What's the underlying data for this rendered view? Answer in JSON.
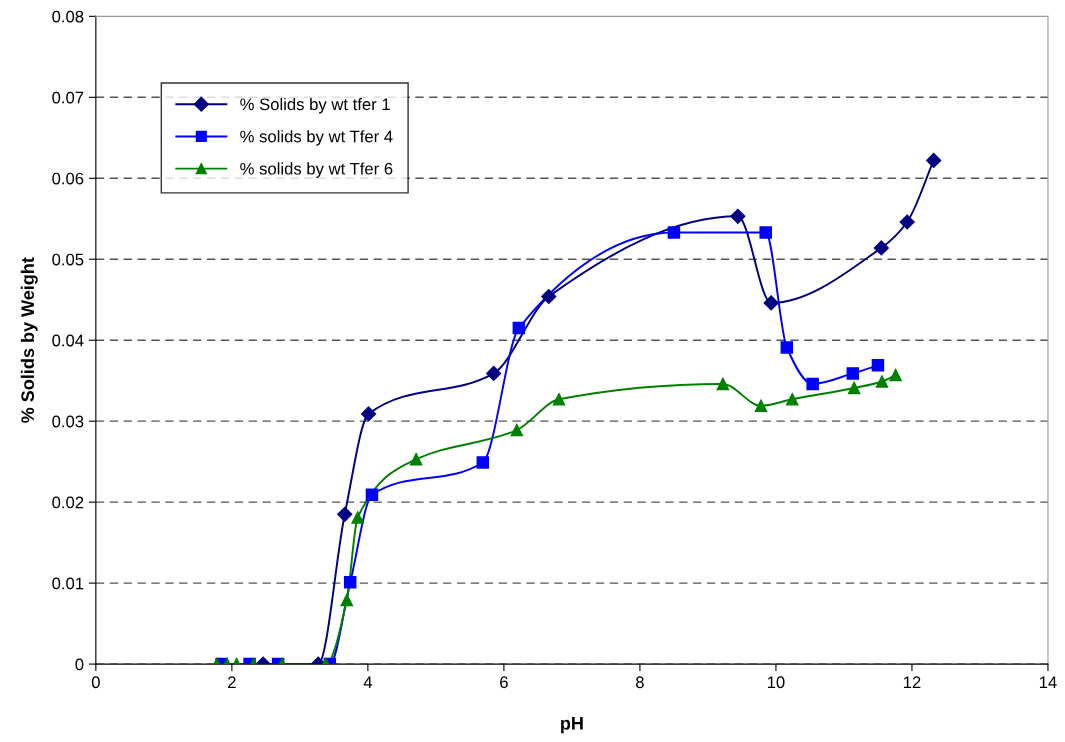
{
  "chart_data": {
    "type": "line",
    "xlabel": "pH",
    "ylabel": "% Solids by Weight",
    "xlim": [
      0,
      14
    ],
    "xticks": [
      0,
      2,
      4,
      6,
      8,
      10,
      12,
      14
    ],
    "ylim": [
      0,
      0.08
    ],
    "yticks": [
      0,
      0.01,
      0.02,
      0.03,
      0.04,
      0.05,
      0.06,
      0.07,
      0.08
    ],
    "grid": "y",
    "legend": "top left",
    "series": [
      {
        "name": "% Solids by wt tfer 1",
        "color": "#000080",
        "marker": "diamond",
        "x": [
          2.46,
          3.27,
          3.66,
          4.01,
          5.85,
          6.66,
          9.44,
          9.93,
          11.55,
          11.93,
          12.32
        ],
        "values": [
          0,
          0,
          0.0185,
          0.0309,
          0.0359,
          0.0454,
          0.0553,
          0.0446,
          0.0514,
          0.0546,
          0.0622
        ]
      },
      {
        "name": "% solids by wt Tfer 4",
        "color": "#0000ff",
        "marker": "square",
        "x": [
          1.85,
          2.26,
          2.68,
          3.44,
          3.74,
          4.06,
          5.69,
          6.22,
          8.5,
          9.85,
          10.16,
          10.54,
          11.13,
          11.5
        ],
        "values": [
          0,
          0,
          0,
          0,
          0.0101,
          0.0209,
          0.0249,
          0.0415,
          0.0533,
          0.0533,
          0.0391,
          0.0346,
          0.0359,
          0.0369
        ]
      },
      {
        "name": "% solids by wt Tfer 6",
        "color": "#008000",
        "marker": "triangle",
        "x": [
          1.78,
          1.93,
          2.07,
          2.32,
          2.74,
          3.38,
          3.69,
          3.85,
          4.71,
          6.19,
          6.81,
          9.22,
          9.78,
          10.24,
          11.15,
          11.56,
          11.76
        ],
        "values": [
          0,
          0,
          0,
          0,
          0,
          0,
          0.0079,
          0.0181,
          0.0253,
          0.0289,
          0.0327,
          0.0346,
          0.0319,
          0.0327,
          0.0341,
          0.0349,
          0.0357
        ]
      }
    ]
  }
}
